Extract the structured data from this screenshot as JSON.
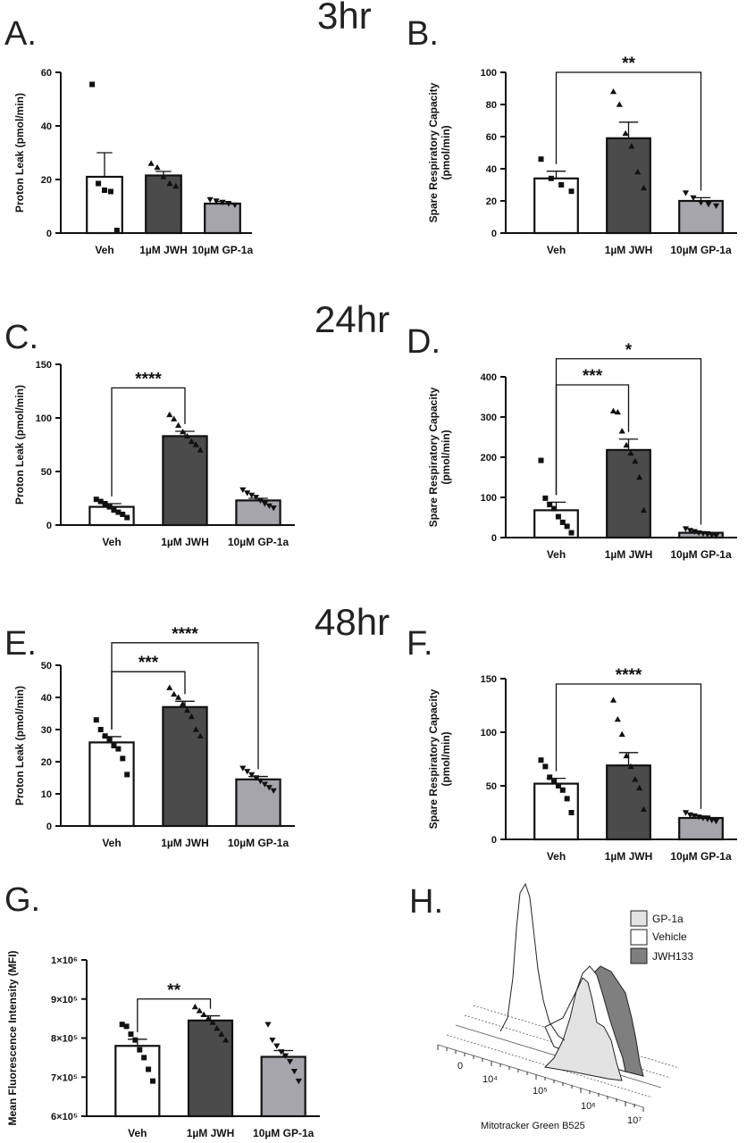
{
  "time_labels": [
    "3hr",
    "24hr",
    "48hr"
  ],
  "chart_data": [
    {
      "panel": "A.",
      "type": "bar",
      "time_label": "3hr",
      "categories": [
        "Veh",
        "1µM JWH",
        "10µM GP-1a"
      ],
      "ylabel": [
        "Proton Leak (pmol/min)"
      ],
      "ylim": [
        0,
        60
      ],
      "yticks": [
        0,
        20,
        40,
        60
      ],
      "means": [
        21,
        21.5,
        11
      ],
      "sem": [
        9,
        1.5,
        0.8
      ],
      "points": [
        [
          55.5,
          18.5,
          16,
          15.5,
          1
        ],
        [
          26,
          24.5,
          21,
          18.5,
          17.5
        ],
        [
          12.5,
          12,
          11.5,
          11,
          10.5
        ]
      ],
      "comparisons": []
    },
    {
      "panel": "B.",
      "type": "bar",
      "categories": [
        "Veh",
        "1µM JWH",
        "10µM GP-1a"
      ],
      "ylabel": [
        "Spare Respiratory Capacity",
        "(pmol/min)"
      ],
      "ylim": [
        0,
        100
      ],
      "yticks": [
        0,
        20,
        40,
        60,
        80,
        100
      ],
      "means": [
        34,
        59,
        20
      ],
      "sem": [
        4.5,
        10,
        2
      ],
      "points": [
        [
          46,
          34,
          30,
          26
        ],
        [
          88,
          80,
          62,
          54,
          38,
          28
        ],
        [
          25,
          22,
          19,
          18,
          17
        ]
      ],
      "comparisons": [
        {
          "from": 0,
          "to": 2,
          "y": 100,
          "label": "**"
        }
      ]
    },
    {
      "panel": "C.",
      "type": "bar",
      "time_label": "24hr",
      "categories": [
        "Veh",
        "1µM JWH",
        "10µM GP-1a"
      ],
      "ylabel": [
        "Proton Leak (pmol/min)"
      ],
      "ylim": [
        0,
        150
      ],
      "yticks": [
        0,
        50,
        100,
        150
      ],
      "means": [
        17,
        83,
        23
      ],
      "sem": [
        3,
        4.5,
        2
      ],
      "points": [
        [
          24,
          22,
          20,
          17,
          14,
          12,
          10,
          7
        ],
        [
          103,
          99,
          93,
          87,
          83,
          78,
          75,
          70
        ],
        [
          33,
          30,
          28,
          26,
          23,
          20,
          18,
          16
        ]
      ],
      "comparisons": [
        {
          "from": 0,
          "to": 1,
          "y": 128,
          "label": "****"
        }
      ]
    },
    {
      "panel": "D.",
      "type": "bar",
      "categories": [
        "Veh",
        "1µM JWH",
        "10µM GP-1a"
      ],
      "ylabel": [
        "Spare Respiratory Capacity",
        "(pmol/min)"
      ],
      "ylim": [
        0,
        400
      ],
      "yticks": [
        0,
        100,
        200,
        300,
        400
      ],
      "means": [
        68,
        218,
        12
      ],
      "sem": [
        20,
        27,
        2.5
      ],
      "points": [
        [
          192,
          98,
          82,
          72,
          52,
          38,
          28,
          12
        ],
        [
          315,
          312,
          265,
          230,
          210,
          190,
          150,
          68
        ],
        [
          22,
          18,
          15,
          12,
          10,
          8,
          6,
          4
        ]
      ],
      "comparisons": [
        {
          "from": 0,
          "to": 1,
          "y": 380,
          "label": "***"
        },
        {
          "from": 0,
          "to": 2,
          "y": 445,
          "label": "*"
        }
      ]
    },
    {
      "panel": "E.",
      "type": "bar",
      "time_label": "48hr",
      "categories": [
        "Veh",
        "1µM JWH",
        "10µM GP-1a"
      ],
      "ylabel": [
        "Proton Leak (pmol/min)"
      ],
      "ylim": [
        0,
        50
      ],
      "yticks": [
        0,
        10,
        20,
        30,
        40,
        50
      ],
      "means": [
        26,
        37,
        14.5
      ],
      "sem": [
        1.8,
        1.8,
        0.9
      ],
      "points": [
        [
          33,
          30,
          28,
          27,
          25,
          24,
          21,
          16
        ],
        [
          43,
          41,
          40,
          38,
          36,
          34,
          30,
          28
        ],
        [
          18,
          17,
          16,
          15,
          14,
          13,
          12,
          11
        ]
      ],
      "comparisons": [
        {
          "from": 0,
          "to": 1,
          "y": 48,
          "label": "***"
        },
        {
          "from": 0,
          "to": 2,
          "y": 57,
          "label": "****"
        }
      ]
    },
    {
      "panel": "F.",
      "type": "bar",
      "categories": [
        "Veh",
        "1µM JWH",
        "10µM GP-1a"
      ],
      "ylabel": [
        "Spare Respiratory Capacity",
        "(pmol/min)"
      ],
      "ylim": [
        0,
        150
      ],
      "yticks": [
        0,
        50,
        100,
        150
      ],
      "means": [
        52,
        69,
        20
      ],
      "sem": [
        5,
        12,
        1.8
      ],
      "points": [
        [
          74,
          68,
          58,
          54,
          50,
          46,
          38,
          25
        ],
        [
          130,
          112,
          98,
          78,
          68,
          56,
          48,
          28
        ],
        [
          25,
          23,
          22,
          21,
          20,
          19,
          18,
          17
        ]
      ],
      "comparisons": [
        {
          "from": 0,
          "to": 2,
          "y": 145,
          "label": "****"
        }
      ]
    },
    {
      "panel": "G.",
      "type": "bar",
      "categories": [
        "Veh",
        "1µM JWH",
        "10µM GP-1a"
      ],
      "ylabel": [
        "Mean Fluorescence Intensity (MFI)"
      ],
      "ylim": [
        600000,
        1000000
      ],
      "yticks": [
        600000,
        700000,
        800000,
        900000,
        1000000
      ],
      "ytick_labels": [
        "6×10⁵",
        "7×10⁵",
        "8×10⁵",
        "9×10⁵",
        "1×10⁶"
      ],
      "means": [
        780000,
        845000,
        752000
      ],
      "sem": [
        17000,
        12000,
        16000
      ],
      "points": [
        [
          835000,
          830000,
          810000,
          795000,
          770000,
          750000,
          720000,
          690000
        ],
        [
          880000,
          870000,
          860000,
          850000,
          840000,
          825000,
          810000,
          795000
        ],
        [
          835000,
          795000,
          780000,
          765000,
          755000,
          740000,
          715000,
          690000
        ]
      ],
      "comparisons": [
        {
          "from": 0,
          "to": 1,
          "y": 900000,
          "label": "**"
        }
      ]
    }
  ],
  "histogram": {
    "panel": "H.",
    "legend": [
      "GP-1a",
      "Vehicle",
      "JWH133"
    ],
    "legend_colors": [
      "#e3e3e3",
      "#ffffff",
      "#7f7f7f"
    ],
    "xlabel": "Mitotracker Green B525",
    "xticks": [
      "0",
      "10⁴",
      "10⁵",
      "10⁶",
      "10⁷"
    ]
  },
  "styles": {
    "bar_fills": [
      "#ffffff",
      "#4b4b4b",
      "#a5a5ab"
    ],
    "markers": [
      "square",
      "triangle-up",
      "triangle-down"
    ]
  }
}
